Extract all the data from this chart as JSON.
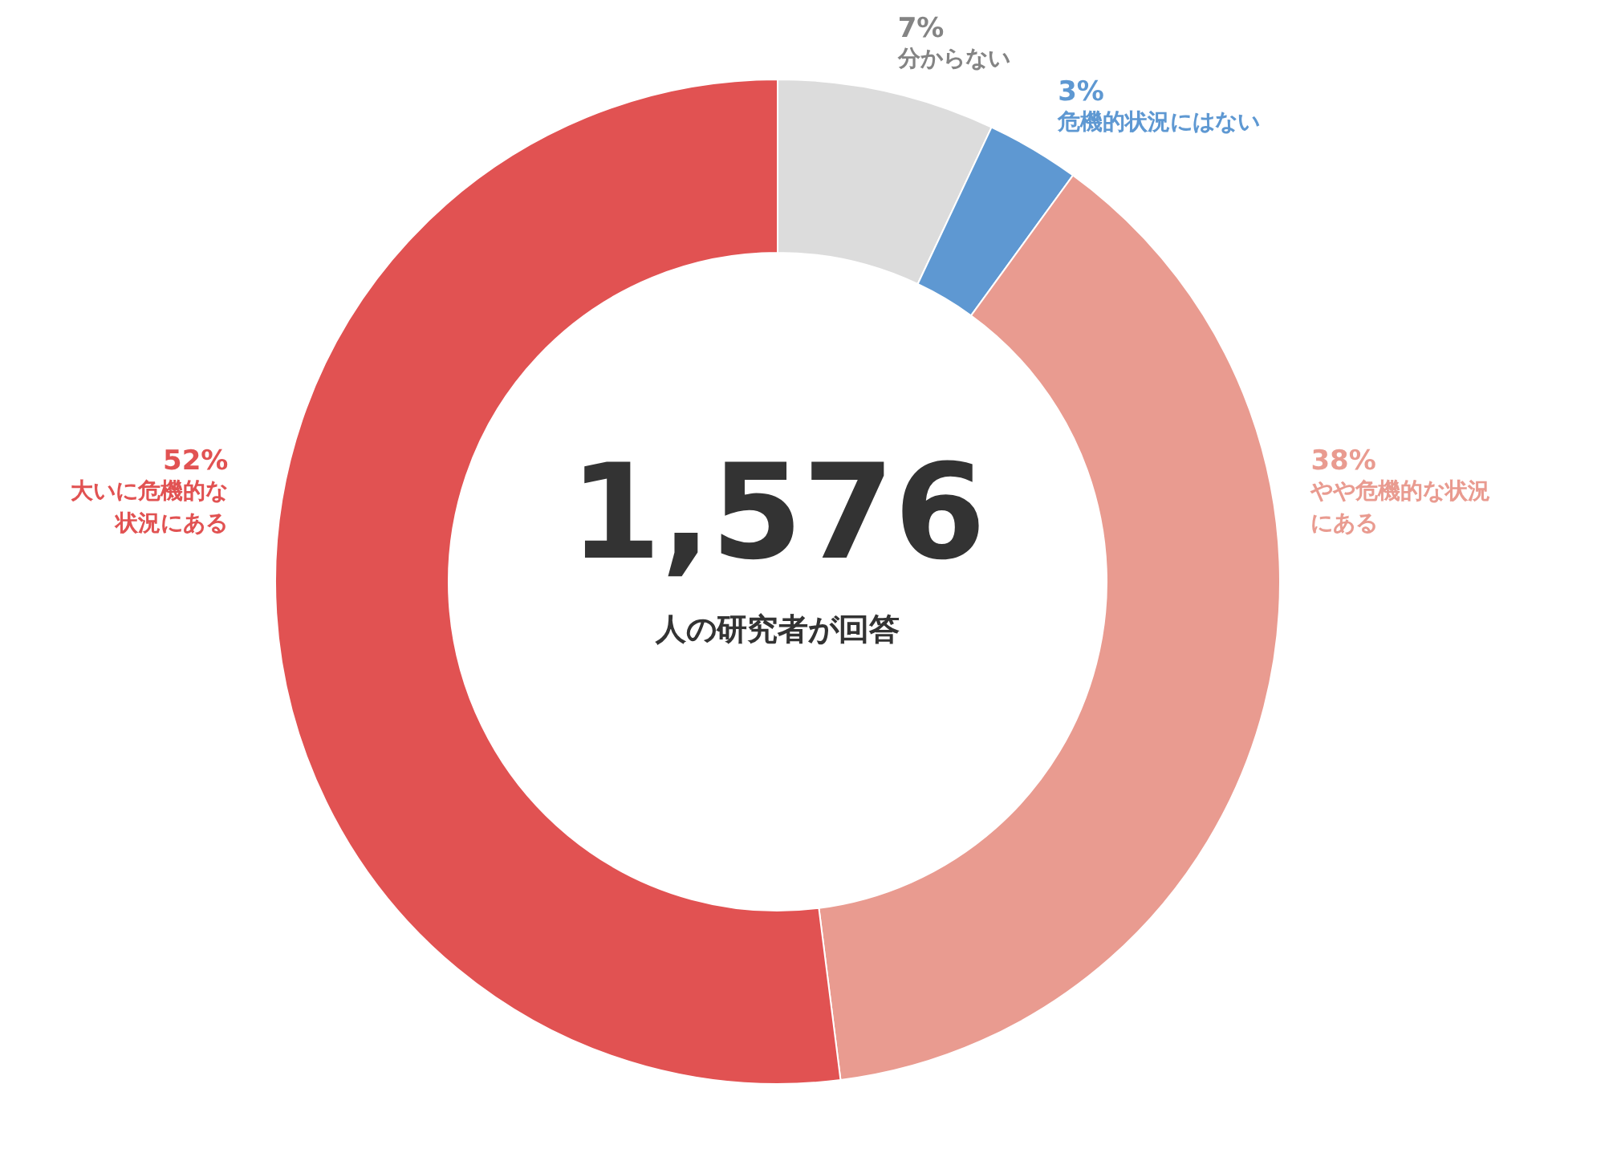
{
  "chart_data": {
    "type": "donut",
    "categories": [
      "分からない",
      "危機的状況にはない",
      "やや危機的な状況にある",
      "大いに危機的な状況にある"
    ],
    "values": [
      7,
      3,
      38,
      52
    ],
    "value_labels": [
      "7%",
      "3%",
      "38%",
      "52%"
    ],
    "colors": [
      "#dcdcdc",
      "#5e98d2",
      "#e99b90",
      "#e15252"
    ],
    "annotations": [
      "1,576",
      "人の研究者が回答"
    ]
  }
}
